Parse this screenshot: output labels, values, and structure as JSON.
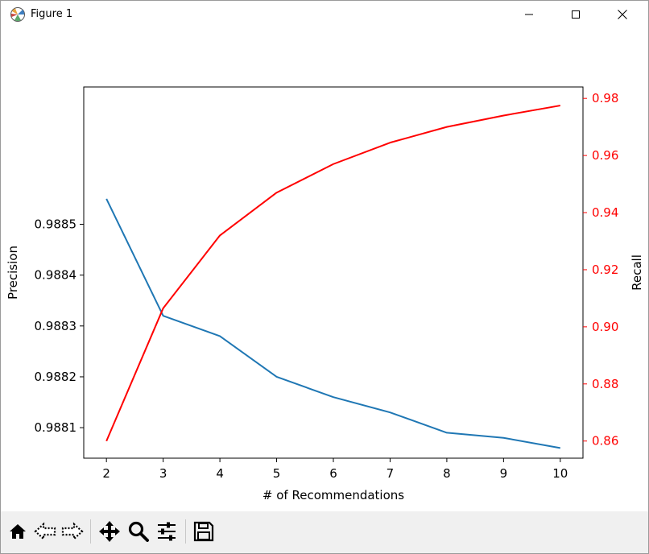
{
  "window": {
    "title": "Figure 1",
    "app_icon": "matplotlib-figure-icon",
    "controls": {
      "minimize_icon": "minimize-icon",
      "maximize_icon": "maximize-icon",
      "close_icon": "close-icon"
    }
  },
  "toolbar": {
    "tools": [
      {
        "name": "home-icon",
        "label": "Home"
      },
      {
        "name": "back-icon",
        "label": "Back"
      },
      {
        "name": "forward-icon",
        "label": "Forward"
      },
      {
        "name": "pan-icon",
        "label": "Pan"
      },
      {
        "name": "zoom-icon",
        "label": "Zoom"
      },
      {
        "name": "subplots-icon",
        "label": "Configure subplots"
      },
      {
        "name": "save-icon",
        "label": "Save"
      }
    ]
  },
  "chart_data": {
    "type": "line",
    "title": "",
    "xlabel": "# of Recommendations",
    "ylabel": "Precision",
    "y2label": "Recall",
    "x": [
      2,
      3,
      4,
      5,
      6,
      7,
      8,
      9,
      10
    ],
    "xlim": [
      1.6,
      10.4
    ],
    "xticks": [
      "2",
      "3",
      "4",
      "5",
      "6",
      "7",
      "8",
      "9",
      "10"
    ],
    "ylim": [
      0.98804,
      0.98877
    ],
    "yticks": [
      0.9881,
      0.9882,
      0.9883,
      0.9884,
      0.9885
    ],
    "ytick_labels": [
      "0.9881",
      "0.9882",
      "0.9883",
      "0.9884",
      "0.9885"
    ],
    "y2lim": [
      0.854,
      0.984
    ],
    "y2ticks": [
      0.86,
      0.88,
      0.9,
      0.92,
      0.94,
      0.96,
      0.98
    ],
    "y2tick_labels": [
      "0.86",
      "0.88",
      "0.90",
      "0.92",
      "0.94",
      "0.96",
      "0.98"
    ],
    "grid": false,
    "series": [
      {
        "axis": "left",
        "color": "#1f77b4",
        "values": [
          0.98855,
          0.98832,
          0.98828,
          0.9882,
          0.98816,
          0.98813,
          0.98809,
          0.98808,
          0.98806
        ]
      },
      {
        "axis": "right",
        "color": "#ff0000",
        "values": [
          0.86,
          0.9065,
          0.932,
          0.947,
          0.957,
          0.9645,
          0.97,
          0.974,
          0.9775
        ]
      }
    ]
  }
}
